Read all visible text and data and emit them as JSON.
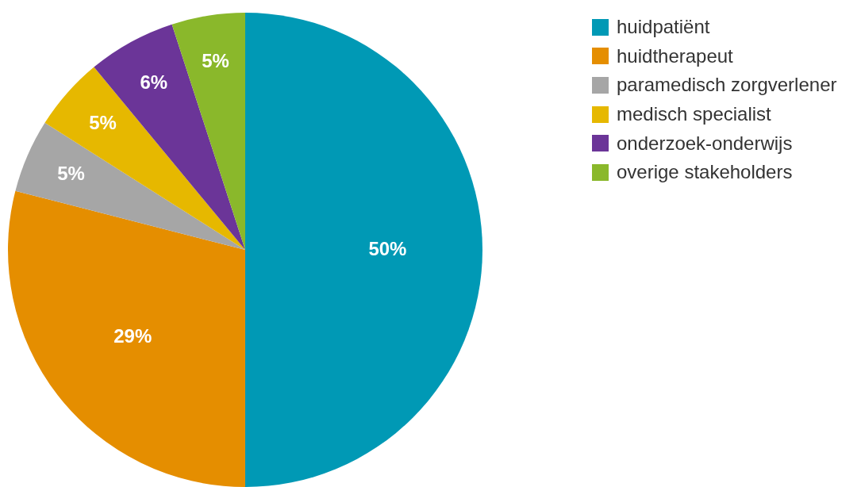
{
  "chart_data": {
    "type": "pie",
    "categories": [
      "huidpatiënt",
      "huidtherapeut",
      "paramedisch zorgverlener",
      "medisch specialist",
      "onderzoek-onderwijs",
      "overige stakeholders"
    ],
    "values": [
      50,
      29,
      5,
      5,
      6,
      5
    ],
    "colors": [
      "#0099b5",
      "#e58e00",
      "#a6a6a6",
      "#e6b800",
      "#6b3598",
      "#8ab82b"
    ],
    "value_labels": [
      "50%",
      "29%",
      "5%",
      "5%",
      "6%",
      "5%"
    ],
    "legend": "right"
  }
}
